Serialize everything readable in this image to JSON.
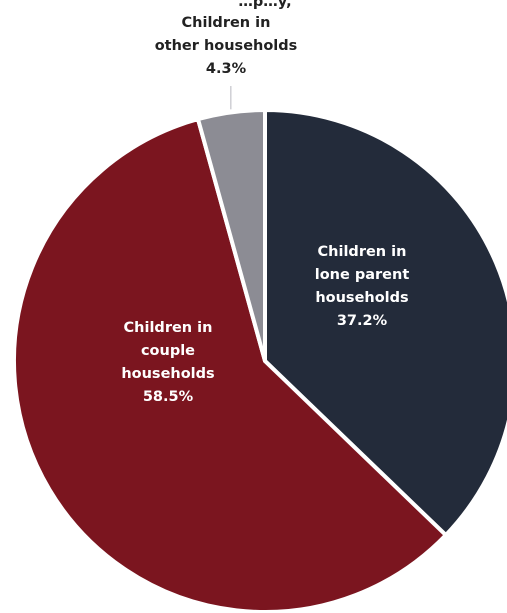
{
  "chart_data": {
    "type": "pie",
    "start_angle_deg": 0,
    "direction": "clockwise",
    "slices": [
      {
        "label_lines": [
          "Children in",
          "lone parent",
          "households"
        ],
        "value": 37.2,
        "value_label": "37.2%",
        "color": "#232b3a",
        "label_position": "inside"
      },
      {
        "label_lines": [
          "Children in",
          "couple",
          "households"
        ],
        "value": 58.5,
        "value_label": "58.5%",
        "color": "#7b151f",
        "label_position": "inside"
      },
      {
        "label_lines": [
          "Children in",
          "other households"
        ],
        "value": 4.3,
        "value_label": "4.3%",
        "color": "#8c8c94",
        "label_position": "outside"
      }
    ],
    "top_partial_text": "…p…y,"
  }
}
